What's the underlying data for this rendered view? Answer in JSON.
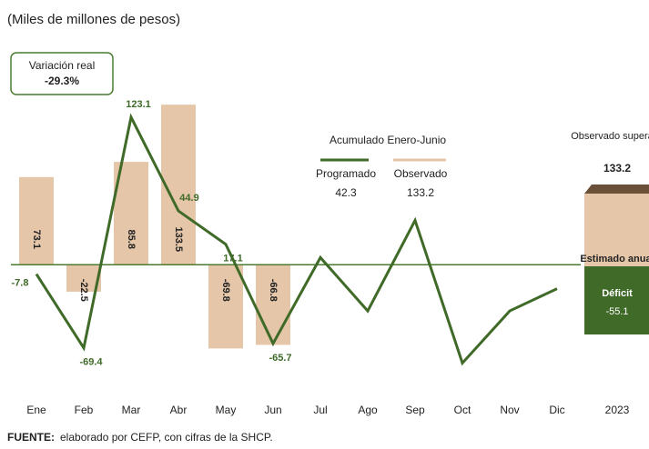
{
  "chart_data": {
    "type": "bar-line",
    "subtitle": "(Miles de millones de pesos)",
    "annotation_box": {
      "label": "Variación real",
      "value": "-29.3%"
    },
    "legend_title": "Acumulado Enero-Junio",
    "legend_values": {
      "Programado": "42.3",
      "Observado": "133.2"
    },
    "categories": [
      "Ene",
      "Feb",
      "Mar",
      "Abr",
      "May",
      "Jun",
      "Jul",
      "Ago",
      "Sep",
      "Oct",
      "Nov",
      "Dic"
    ],
    "series": [
      {
        "name": "Observado",
        "kind": "bar",
        "color": "#e5c6a9",
        "values": [
          73.1,
          -22.5,
          85.8,
          133.5,
          -69.8,
          -66.8,
          null,
          null,
          null,
          null,
          null,
          null
        ]
      },
      {
        "name": "Programado",
        "kind": "line",
        "color": "#3f6a28",
        "values": [
          -7.8,
          -69.4,
          123.1,
          44.9,
          17.1,
          -65.7,
          6,
          -38.5,
          37,
          -82,
          -38.5,
          -20
        ],
        "value_labels": [
          "-7.8",
          "-69.4",
          "123.1",
          "44.9",
          "17.1",
          "-65.7",
          null,
          null,
          null,
          null,
          null,
          null
        ]
      }
    ],
    "ylim": [
      -90,
      145
    ],
    "annual": {
      "year": "2023",
      "observed_label": "Observado superávit",
      "observed_value": "133.2",
      "estimated_label": "Estimado anual",
      "deficit_label": "Déficit",
      "deficit_value": "-55.1"
    },
    "source_label": "FUENTE:",
    "source": "elaborado por CEFP, con cifras de la SHCP."
  }
}
